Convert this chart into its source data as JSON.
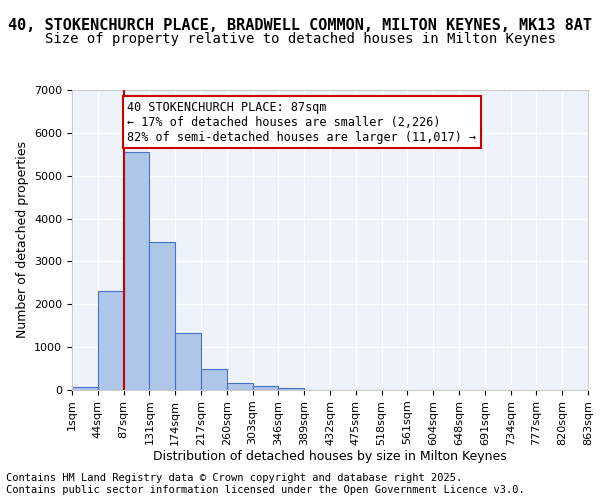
{
  "title_line1": "40, STOKENCHURCH PLACE, BRADWELL COMMON, MILTON KEYNES, MK13 8AT",
  "title_line2": "Size of property relative to detached houses in Milton Keynes",
  "xlabel": "Distribution of detached houses by size in Milton Keynes",
  "ylabel": "Number of detached properties",
  "bin_labels": [
    "1sqm",
    "44sqm",
    "87sqm",
    "131sqm",
    "174sqm",
    "217sqm",
    "260sqm",
    "303sqm",
    "346sqm",
    "389sqm",
    "432sqm",
    "475sqm",
    "518sqm",
    "561sqm",
    "604sqm",
    "648sqm",
    "691sqm",
    "734sqm",
    "777sqm",
    "820sqm",
    "863sqm"
  ],
  "bar_values": [
    80,
    2300,
    5550,
    3450,
    1330,
    480,
    165,
    90,
    50,
    0,
    0,
    0,
    0,
    0,
    0,
    0,
    0,
    0,
    0,
    0
  ],
  "bar_color": "#aec6e8",
  "bar_edge_color": "#4472c4",
  "red_line_x": 2,
  "annotation_text": "40 STOKENCHURCH PLACE: 87sqm\n← 17% of detached houses are smaller (2,226)\n82% of semi-detached houses are larger (11,017) →",
  "annotation_box_color": "#ffffff",
  "annotation_box_edge": "#cc0000",
  "ylim": [
    0,
    7000
  ],
  "yticks": [
    0,
    1000,
    2000,
    3000,
    4000,
    5000,
    6000,
    7000
  ],
  "background_color": "#eef3fb",
  "grid_color": "#ffffff",
  "footer_text": "Contains HM Land Registry data © Crown copyright and database right 2025.\nContains public sector information licensed under the Open Government Licence v3.0.",
  "title_fontsize": 11,
  "subtitle_fontsize": 10,
  "axis_label_fontsize": 9,
  "tick_fontsize": 8,
  "annotation_fontsize": 8.5,
  "footer_fontsize": 7.5
}
